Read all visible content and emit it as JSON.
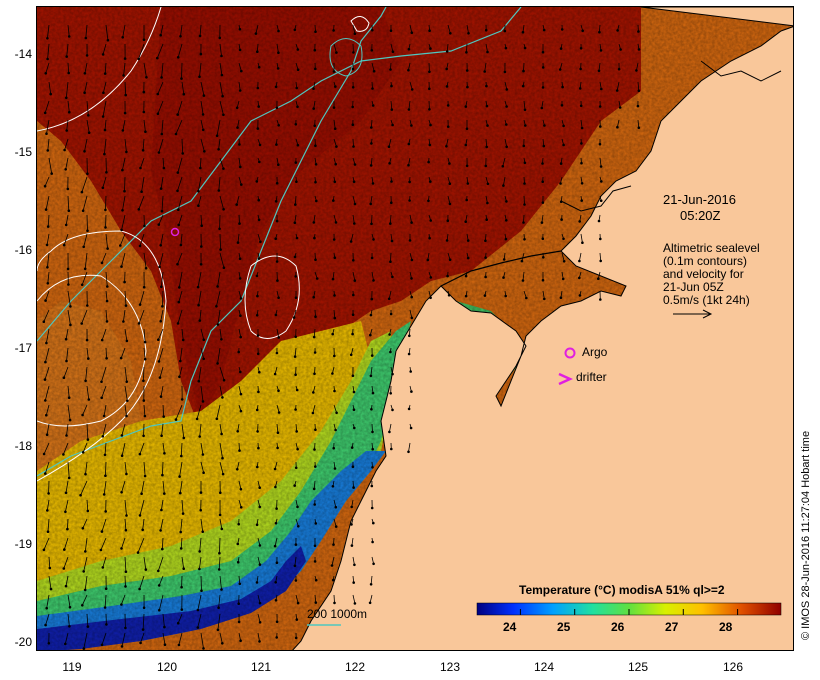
{
  "map": {
    "y_ticks": [
      "-14",
      "-15",
      "-16",
      "-17",
      "-18",
      "-19",
      "-20"
    ],
    "x_ticks": [
      "119",
      "120",
      "121",
      "122",
      "123",
      "124",
      "125",
      "126"
    ]
  },
  "annotation": {
    "date": "21-Jun-2016",
    "time": "05:20Z",
    "sealevel_lines": [
      "Altimetric sealevel",
      "(0.1m contours)",
      "and velocity for",
      "21-Jun 05Z",
      "0.5m/s (1kt 24h)"
    ]
  },
  "markers": {
    "argo_label": "Argo",
    "drifter_label": "drifter"
  },
  "bathymetry_label": "200  1000m",
  "legend": {
    "title": "Temperature (°C) modisA 51% ql>=2",
    "ticks": [
      "24",
      "25",
      "26",
      "27",
      "28"
    ],
    "range": [
      23.2,
      28.8
    ]
  },
  "stamp": "© IMOS 28-Jun-2016 11:27:04 Hobart time",
  "colors": {
    "land": "#f9c79a",
    "warm_dark": "#a31000",
    "contour": "#ffffff",
    "bathymetry": "#4fc7c0",
    "marker": "#e020e0"
  }
}
